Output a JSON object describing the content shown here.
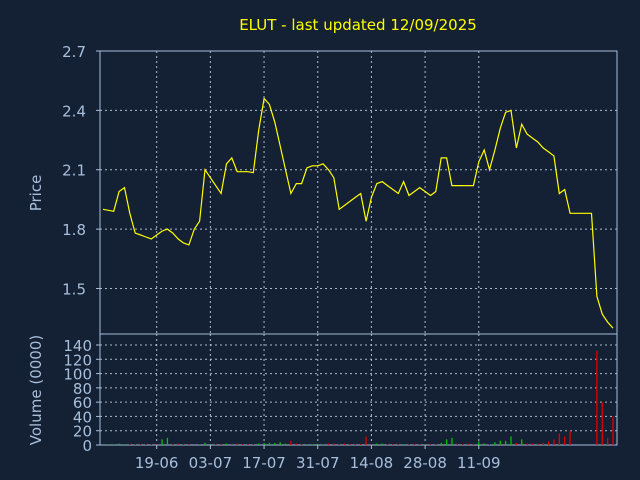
{
  "chart_data": [
    {
      "type": "line",
      "title": "ELUT - last updated 12/09/2025",
      "ylabel": "Price",
      "xlabel": "",
      "ylim": [
        1.27,
        2.7
      ],
      "yticks": [
        1.5,
        1.8,
        2.1,
        2.4,
        2.7
      ],
      "ytick_labels": [
        "1.5",
        "1.8",
        "2.1",
        "2.4",
        "2.7"
      ],
      "xtick_labels": [
        "19-06",
        "03-07",
        "17-07",
        "31-07",
        "14-08",
        "28-08",
        "11-09"
      ],
      "xtick_index": [
        10,
        20,
        30,
        40,
        50,
        60,
        70
      ],
      "grid": true,
      "color": "#ffff00",
      "series": [
        {
          "values": [
            1.9,
            1.895,
            1.89,
            1.99,
            2.01,
            1.88,
            1.78,
            1.77,
            1.76,
            1.75,
            1.77,
            1.79,
            1.8,
            1.78,
            1.75,
            1.73,
            1.72,
            1.8,
            1.84,
            2.1,
            2.06,
            2.02,
            1.98,
            2.13,
            2.16,
            2.09,
            2.09,
            2.09,
            2.085,
            2.3,
            2.46,
            2.43,
            2.34,
            2.22,
            2.1,
            1.98,
            2.03,
            2.03,
            2.11,
            2.12,
            2.12,
            2.13,
            2.1,
            2.06,
            1.9,
            1.92,
            1.94,
            1.96,
            1.98,
            1.84,
            1.96,
            2.03,
            2.04,
            2.02,
            2.0,
            1.98,
            2.04,
            1.97,
            1.99,
            2.01,
            1.99,
            1.97,
            1.99,
            2.16,
            2.16,
            2.02,
            2.02,
            2.02,
            2.02,
            2.02,
            2.14,
            2.2,
            2.1,
            2.2,
            2.31,
            2.39,
            2.4,
            2.21,
            2.33,
            2.28,
            2.26,
            2.24,
            2.21,
            2.19,
            2.17,
            1.98,
            2.0,
            1.88,
            1.88,
            1.88,
            1.88,
            1.88,
            1.46,
            1.37,
            1.33,
            1.3
          ]
        }
      ]
    },
    {
      "type": "bar",
      "ylabel": "Volume (0000)",
      "xlabel": "",
      "ylim": [
        0,
        140
      ],
      "yticks": [
        0,
        20,
        40,
        60,
        80,
        100,
        120,
        140
      ],
      "ytick_labels": [
        "0",
        "20",
        "40",
        "60",
        "80",
        "100",
        "120",
        "140"
      ],
      "xtick_labels": [
        "19-06",
        "03-07",
        "17-07",
        "31-07",
        "14-08",
        "28-08",
        "11-09"
      ],
      "xtick_index": [
        10,
        20,
        30,
        40,
        50,
        60,
        70
      ],
      "grid": true,
      "up_color": "#00c000",
      "down_color": "#e00000",
      "series": [
        {
          "name": "up",
          "values": [
            0,
            1,
            1,
            2,
            1,
            0,
            0,
            0,
            0,
            0,
            0,
            8,
            10,
            0,
            0,
            0,
            0,
            0,
            1,
            3,
            1,
            0,
            0,
            2,
            1,
            0,
            0,
            0,
            0,
            2,
            3,
            3,
            3,
            4,
            2,
            0,
            0,
            0,
            1,
            1,
            1,
            1,
            0,
            0,
            0,
            0,
            0,
            0,
            0,
            0,
            0,
            2,
            2,
            0,
            0,
            0,
            1,
            0,
            0,
            0,
            0,
            0,
            0,
            3,
            8,
            10,
            0,
            0,
            0,
            0,
            5,
            2,
            0,
            4,
            6,
            6,
            12,
            0,
            8,
            0,
            0,
            0,
            0,
            0,
            0,
            0,
            0,
            0,
            0,
            0,
            0,
            0,
            0,
            0,
            0,
            0
          ]
        },
        {
          "name": "down",
          "values": [
            0,
            0,
            0,
            0,
            0,
            1,
            1,
            1,
            1,
            1,
            1,
            0,
            0,
            1,
            2,
            1,
            1,
            0,
            0,
            0,
            0,
            1,
            1,
            0,
            0,
            2,
            1,
            1,
            1,
            0,
            0,
            0,
            0,
            0,
            0,
            6,
            2,
            1,
            0,
            0,
            0,
            0,
            2,
            2,
            1,
            2,
            1,
            1,
            1,
            12,
            1,
            0,
            0,
            1,
            1,
            1,
            0,
            1,
            1,
            1,
            1,
            1,
            1,
            0,
            0,
            0,
            2,
            1,
            2,
            1,
            0,
            0,
            1,
            0,
            0,
            0,
            0,
            3,
            0,
            2,
            2,
            2,
            3,
            5,
            8,
            16,
            12,
            20,
            0,
            0,
            0,
            0,
            132,
            60,
            10,
            40
          ]
        }
      ]
    }
  ]
}
